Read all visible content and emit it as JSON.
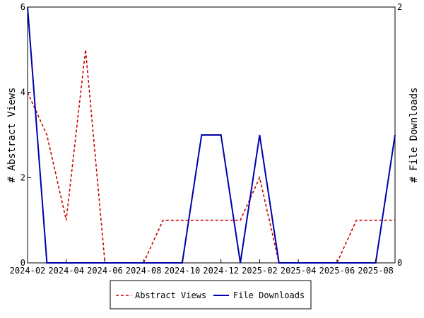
{
  "chart_data": {
    "type": "line",
    "title": "",
    "xlabel": "",
    "ylabel": "# Abstract Views",
    "y2label": "# File Downloads",
    "x_ticks": [
      "2024-02",
      "2024-04",
      "2024-06",
      "2024-08",
      "2024-10",
      "2024-12",
      "2025-02",
      "2025-04",
      "2025-06",
      "2025-08"
    ],
    "x": [
      "2024-02",
      "2024-03",
      "2024-04",
      "2024-05",
      "2024-06",
      "2024-07",
      "2024-08",
      "2024-09",
      "2024-10",
      "2024-11",
      "2024-12",
      "2025-01",
      "2025-02",
      "2025-03",
      "2025-04",
      "2025-05",
      "2025-06",
      "2025-07",
      "2025-08",
      "2025-09"
    ],
    "ylim": [
      0,
      6
    ],
    "y_ticks": [
      0,
      2,
      4,
      6
    ],
    "y2lim": [
      0,
      2
    ],
    "y2_ticks": [
      0,
      2
    ],
    "grid": false,
    "legend_position": "bottom",
    "series": [
      {
        "name": "Abstract Views",
        "axis": "left",
        "color": "#cc0000",
        "dash": "dashed",
        "values": [
          4,
          3,
          1,
          5,
          0,
          0,
          0,
          1,
          1,
          1,
          1,
          1,
          2,
          0,
          0,
          0,
          0,
          1,
          1,
          1
        ]
      },
      {
        "name": "File Downloads",
        "axis": "right",
        "color": "#0000aa",
        "dash": "solid",
        "values": [
          2,
          0,
          0,
          0,
          0,
          0,
          0,
          0,
          0,
          1,
          1,
          0,
          1,
          0,
          0,
          0,
          0,
          0,
          0,
          1
        ]
      }
    ]
  }
}
